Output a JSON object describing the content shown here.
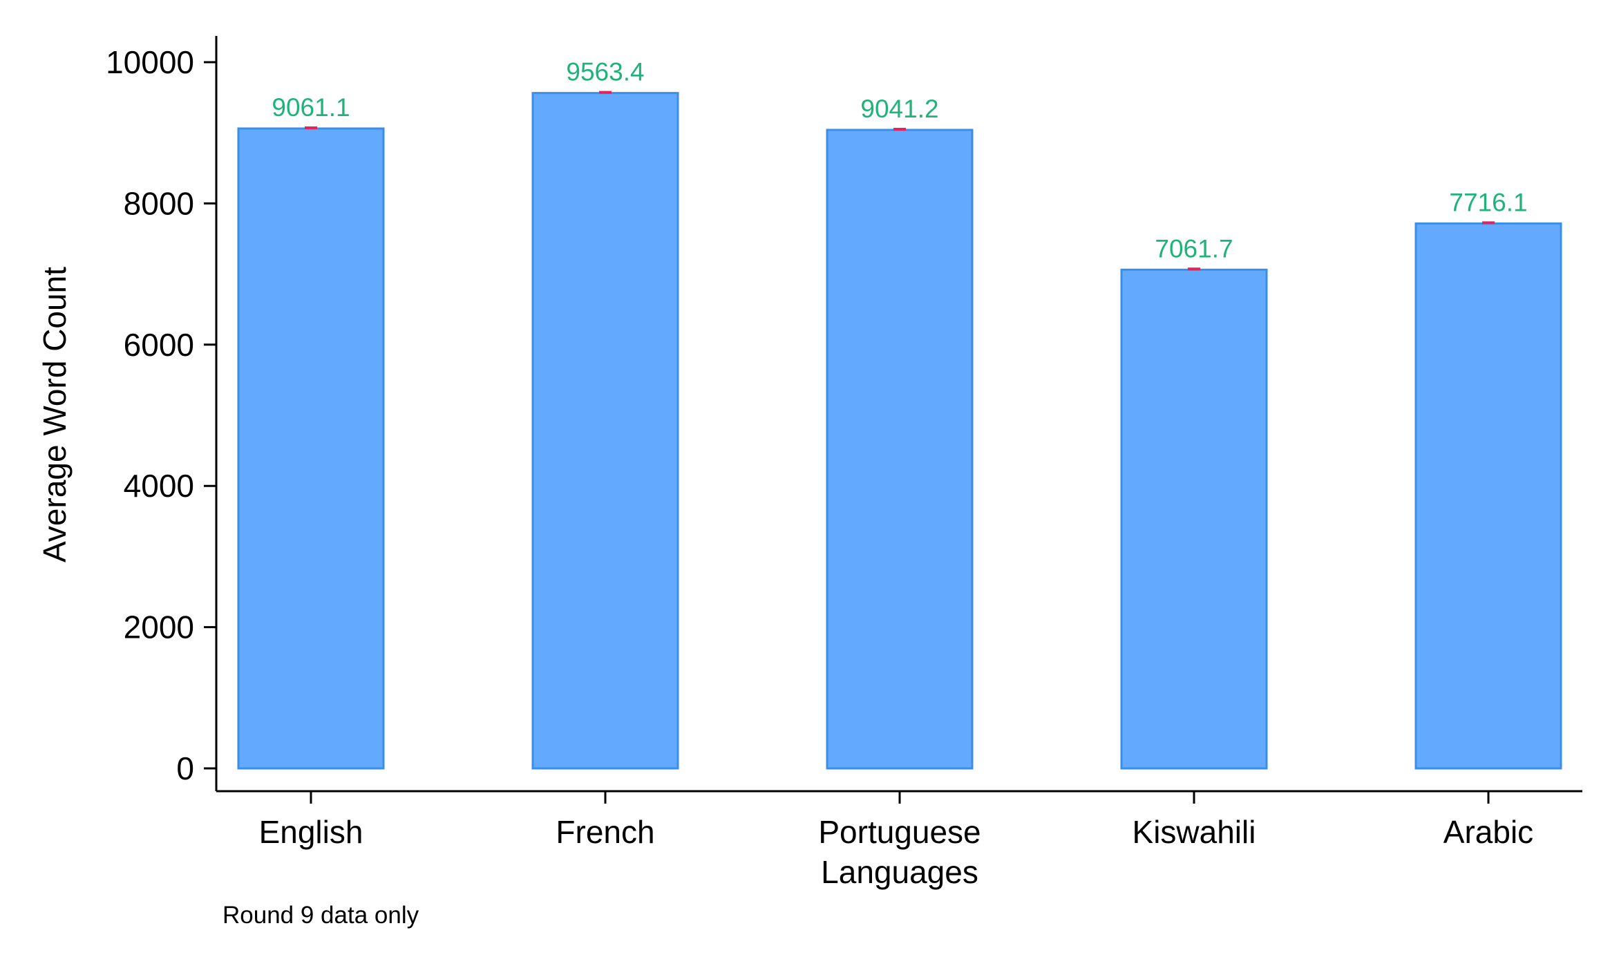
{
  "chart_data": {
    "type": "bar",
    "categories": [
      "English",
      "French",
      "Portuguese",
      "Kiswahili",
      "Arabic"
    ],
    "values": [
      9061.1,
      9563.4,
      9041.2,
      7061.7,
      7716.1
    ],
    "data_labels": [
      "9061.1",
      "9563.4",
      "9041.2",
      "7061.7",
      "7716.1"
    ],
    "xlabel": "Languages",
    "ylabel": "Average Word Count",
    "note": "Round 9 data only",
    "ylim": [
      0,
      10000
    ],
    "yticks": [
      0,
      2000,
      4000,
      6000,
      8000,
      10000
    ],
    "ytick_labels": [
      "0",
      "2000",
      "4000",
      "6000",
      "8000",
      "10000"
    ],
    "grid": false,
    "legend": "none",
    "colors": {
      "bar_fill": "#63aaff",
      "bar_stroke": "#3b8ee8",
      "data_label": "#1fb37a",
      "error_marker": "#e0245e",
      "axis": "#000000"
    }
  }
}
